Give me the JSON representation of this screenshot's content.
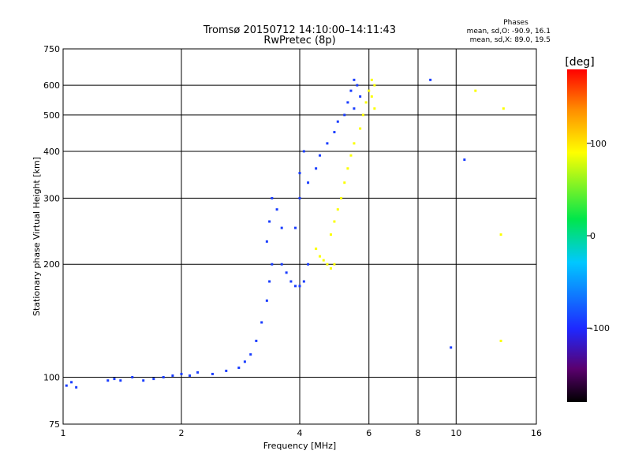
{
  "chart_data": {
    "type": "scatter",
    "title": "Tromsø 20150712 14:10:00–14:11:43",
    "subtitle": "RwPretec (8p)",
    "xlabel": "Frequency [MHz]",
    "ylabel": "Stationary phase Virtual Height [km]",
    "x_scale": "log",
    "y_scale": "log",
    "xlim": [
      1,
      16
    ],
    "ylim": [
      75,
      750
    ],
    "x_ticks": [
      1,
      2,
      4,
      6,
      8,
      10,
      16
    ],
    "y_ticks": [
      75,
      100,
      200,
      300,
      400,
      500,
      600,
      750
    ],
    "grid": true,
    "phases": {
      "title": "Phases",
      "line_o": "mean, sd,O: -90.9, 16.1",
      "line_x": "mean, sd,X:  89.0, 19.5"
    },
    "colorbar": {
      "label": "[deg]",
      "range": [
        -180,
        180
      ],
      "ticks": [
        100,
        0,
        -100
      ]
    },
    "series": [
      {
        "mode": "O",
        "mean_phase": -90.9,
        "points": [
          [
            1.02,
            95
          ],
          [
            1.05,
            97
          ],
          [
            1.08,
            94
          ],
          [
            1.3,
            98
          ],
          [
            1.35,
            99
          ],
          [
            1.4,
            98
          ],
          [
            1.5,
            100
          ],
          [
            1.6,
            98
          ],
          [
            1.7,
            99
          ],
          [
            1.8,
            100
          ],
          [
            1.9,
            101
          ],
          [
            2.0,
            102
          ],
          [
            2.1,
            101
          ],
          [
            2.2,
            103
          ],
          [
            2.4,
            102
          ],
          [
            2.6,
            104
          ],
          [
            2.8,
            106
          ],
          [
            2.9,
            110
          ],
          [
            3.0,
            115
          ],
          [
            3.1,
            125
          ],
          [
            3.2,
            140
          ],
          [
            3.3,
            160
          ],
          [
            3.35,
            180
          ],
          [
            3.4,
            200
          ],
          [
            3.3,
            230
          ],
          [
            3.35,
            260
          ],
          [
            3.4,
            300
          ],
          [
            3.5,
            280
          ],
          [
            3.6,
            250
          ],
          [
            3.6,
            200
          ],
          [
            3.7,
            190
          ],
          [
            3.8,
            180
          ],
          [
            3.9,
            175
          ],
          [
            4.0,
            175
          ],
          [
            4.1,
            180
          ],
          [
            4.2,
            200
          ],
          [
            3.9,
            250
          ],
          [
            4.0,
            300
          ],
          [
            4.0,
            350
          ],
          [
            4.1,
            400
          ],
          [
            4.2,
            330
          ],
          [
            4.4,
            360
          ],
          [
            4.5,
            390
          ],
          [
            4.7,
            420
          ],
          [
            4.9,
            450
          ],
          [
            5.0,
            480
          ],
          [
            5.2,
            500
          ],
          [
            5.3,
            540
          ],
          [
            5.4,
            580
          ],
          [
            5.5,
            620
          ],
          [
            5.6,
            600
          ],
          [
            5.5,
            520
          ],
          [
            5.7,
            560
          ],
          [
            8.6,
            620
          ],
          [
            10.5,
            380
          ],
          [
            9.7,
            120
          ]
        ]
      },
      {
        "mode": "X",
        "mean_phase": 89.0,
        "points": [
          [
            4.4,
            220
          ],
          [
            4.5,
            210
          ],
          [
            4.6,
            205
          ],
          [
            4.7,
            200
          ],
          [
            4.8,
            195
          ],
          [
            4.9,
            200
          ],
          [
            4.8,
            240
          ],
          [
            4.9,
            260
          ],
          [
            5.0,
            280
          ],
          [
            5.1,
            300
          ],
          [
            5.2,
            330
          ],
          [
            5.3,
            360
          ],
          [
            5.4,
            390
          ],
          [
            5.5,
            420
          ],
          [
            5.7,
            460
          ],
          [
            5.8,
            500
          ],
          [
            5.9,
            540
          ],
          [
            6.0,
            580
          ],
          [
            6.1,
            620
          ],
          [
            6.2,
            600
          ],
          [
            6.1,
            560
          ],
          [
            6.2,
            520
          ],
          [
            11.2,
            580
          ],
          [
            13.2,
            520
          ],
          [
            13.0,
            240
          ],
          [
            13.0,
            125
          ]
        ]
      }
    ]
  }
}
